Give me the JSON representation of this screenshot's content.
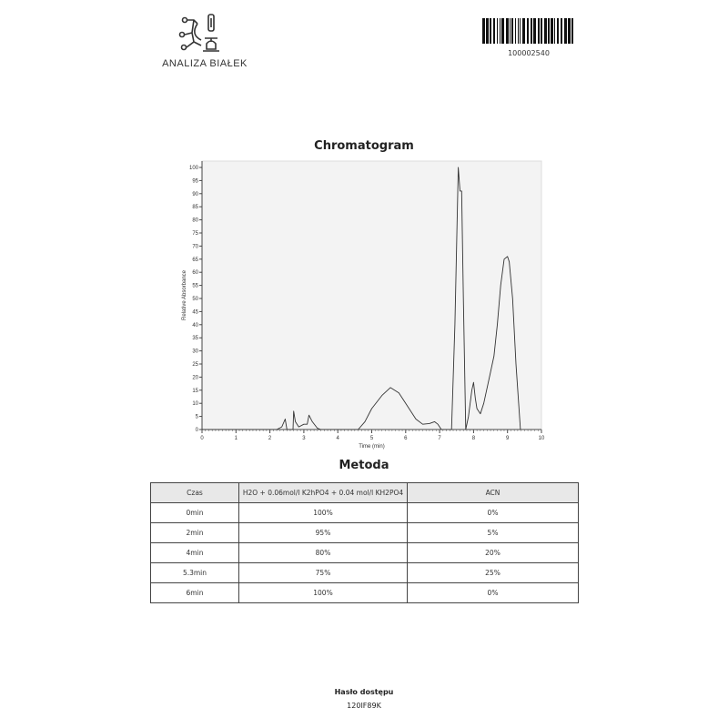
{
  "header": {
    "logo_text": "ANALIZA BIAŁEK",
    "barcode_number": "100002540"
  },
  "chart_data": {
    "type": "line",
    "title": "Chromatogram",
    "xlabel": "Time (min)",
    "ylabel": "Relative Absorbance",
    "xlim": [
      0,
      10
    ],
    "ylim": [
      0,
      100
    ],
    "xticks": [
      0,
      1,
      2,
      3,
      4,
      5,
      6,
      7,
      8,
      9,
      10
    ],
    "yticks": [
      0,
      5,
      10,
      15,
      20,
      25,
      30,
      35,
      40,
      45,
      50,
      55,
      60,
      65,
      70,
      75,
      80,
      85,
      90,
      95,
      100
    ],
    "grid": false,
    "line_color": "#333333",
    "background": "#f3f3f3",
    "x": [
      0,
      2.2,
      2.35,
      2.45,
      2.5,
      2.68,
      2.7,
      2.75,
      2.85,
      3.0,
      3.1,
      3.15,
      3.25,
      3.4,
      3.5,
      4.6,
      4.8,
      5.0,
      5.3,
      5.55,
      5.8,
      6.0,
      6.3,
      6.5,
      6.7,
      6.85,
      6.95,
      7.05,
      7.35,
      7.45,
      7.55,
      7.6,
      7.65,
      7.7,
      7.77,
      7.85,
      7.95,
      8.0,
      8.05,
      8.1,
      8.2,
      8.3,
      8.5,
      8.6,
      8.7,
      8.8,
      8.9,
      9.0,
      9.05,
      9.15,
      9.25,
      9.38
    ],
    "y": [
      0,
      0,
      1,
      4,
      0,
      0,
      7,
      3,
      1,
      2,
      2,
      5.5,
      3,
      0.5,
      0,
      0,
      3,
      8,
      13,
      16,
      14,
      10,
      4,
      2,
      2.3,
      3,
      2,
      0,
      0,
      40,
      100,
      91,
      91,
      50,
      0,
      5,
      15,
      18,
      12,
      8,
      6,
      10,
      22,
      28,
      40,
      55,
      65,
      66,
      64,
      50,
      25,
      0
    ]
  },
  "method": {
    "title": "Metoda",
    "headers": [
      "Czas",
      "H2O + 0.06mol/l K2hPO4 + 0.04 mol/l KH2PO4",
      "ACN"
    ],
    "rows": [
      [
        "0min",
        "100%",
        "0%"
      ],
      [
        "2min",
        "95%",
        "5%"
      ],
      [
        "4min",
        "80%",
        "20%"
      ],
      [
        "5.3min",
        "75%",
        "25%"
      ],
      [
        "6min",
        "100%",
        "0%"
      ]
    ]
  },
  "footer": {
    "label": "Hasło dostępu",
    "value": "120IF89K"
  }
}
